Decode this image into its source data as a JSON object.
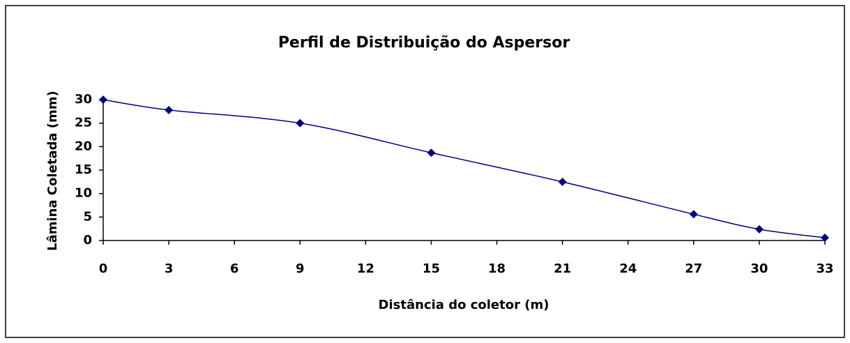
{
  "chart_data": {
    "type": "line",
    "title": "Perfil de Distribuição do Aspersor",
    "x_label": "Distância do coletor (m)",
    "y_label": "Lâmina Coletada (mm)",
    "x": [
      0,
      3,
      9,
      15,
      21,
      27,
      30,
      33
    ],
    "values": [
      30,
      27.8,
      25,
      18.7,
      12.5,
      5.6,
      2.4,
      0.6
    ],
    "color": "#000080",
    "xlim": [
      0,
      33
    ],
    "xticks": [
      0,
      3,
      6,
      9,
      12,
      15,
      18,
      21,
      24,
      27,
      30,
      33
    ],
    "ylim": [
      0,
      30
    ],
    "yticks": [
      0,
      5,
      10,
      15,
      20,
      25,
      30
    ],
    "grid": false,
    "smooth": true
  }
}
